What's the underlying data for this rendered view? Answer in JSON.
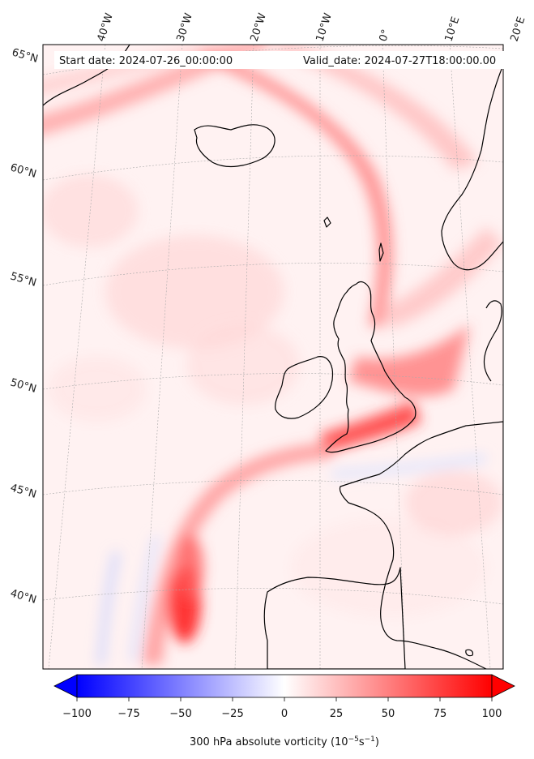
{
  "header": {
    "start_label": "Start date: 2024-07-26_00:00:00",
    "valid_label": "Valid_date: 2024-07-27T18:00:00.00"
  },
  "axes": {
    "lon_labels": [
      "40°W",
      "30°W",
      "20°W",
      "10°W",
      "0°",
      "10°E",
      "20°E"
    ],
    "lat_labels": [
      "65°N",
      "60°N",
      "55°N",
      "50°N",
      "45°N",
      "40°N"
    ]
  },
  "colorbar": {
    "ticks": [
      "−100",
      "−75",
      "−50",
      "−25",
      "0",
      "25",
      "50",
      "75",
      "100"
    ],
    "min": -100,
    "max": 100,
    "label_prefix": "300 hPa absolute vorticity (10",
    "label_exp1": "−5",
    "label_mid": "s",
    "label_exp2": "−1",
    "label_suffix": ")",
    "neg_color": "#0000ff",
    "pos_color": "#ff0000",
    "mid_color": "#ffffff"
  },
  "colors": {
    "background_field": "#fff1f1",
    "coastline": "#000000",
    "gridline": "#aaaaaa"
  }
}
